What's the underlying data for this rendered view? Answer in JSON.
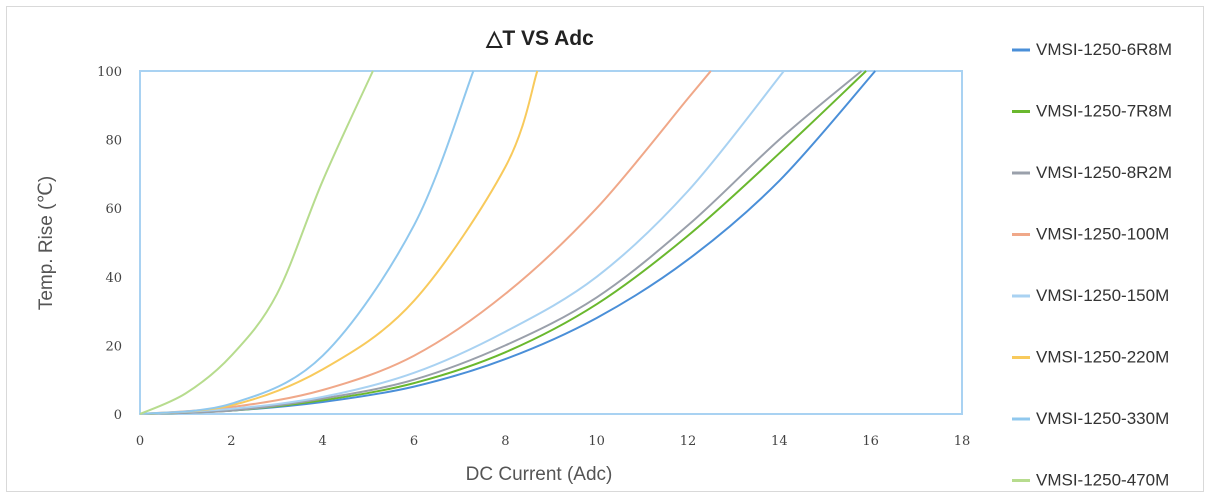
{
  "chart_data": {
    "type": "line",
    "title": "△T VS Adc",
    "xlabel": "DC Current (Adc)",
    "ylabel": "Temp. Rise (℃)",
    "xlim": [
      0,
      18
    ],
    "ylim": [
      0,
      100
    ],
    "x_ticks": [
      "0",
      "2",
      "4",
      "6",
      "8",
      "10",
      "12",
      "14",
      "16",
      "18"
    ],
    "y_ticks": [
      "0",
      "20",
      "40",
      "60",
      "80",
      "100"
    ],
    "grid": false,
    "legend_position": "right",
    "series": [
      {
        "name": "VMSI-1250-6R8M",
        "color": "#4a8fd8",
        "x": [
          0,
          2,
          4,
          6,
          8,
          10,
          12,
          14,
          16.1
        ],
        "y": [
          0,
          1,
          3.5,
          8,
          16,
          28,
          45,
          68,
          100
        ]
      },
      {
        "name": "VMSI-1250-7R8M",
        "color": "#6ab82e",
        "x": [
          0,
          2,
          4,
          6,
          8,
          10,
          12,
          14,
          15.9
        ],
        "y": [
          0,
          1,
          4,
          9,
          18,
          32,
          52,
          76,
          100
        ]
      },
      {
        "name": "VMSI-1250-8R2M",
        "color": "#9aa0ab",
        "x": [
          0,
          2,
          4,
          6,
          8,
          10,
          12,
          14,
          15.8
        ],
        "y": [
          0,
          1,
          4.5,
          10,
          20,
          34,
          55,
          80,
          100
        ]
      },
      {
        "name": "VMSI-1250-100M",
        "color": "#f0a889",
        "x": [
          0,
          2,
          4,
          6,
          8,
          10,
          12,
          12.5
        ],
        "y": [
          0,
          2,
          7,
          17,
          35,
          60,
          92,
          100
        ]
      },
      {
        "name": "VMSI-1250-150M",
        "color": "#a9d2f2",
        "x": [
          0,
          2,
          4,
          6,
          8,
          10,
          12,
          14.1
        ],
        "y": [
          0,
          1.5,
          5,
          12,
          24,
          40,
          65,
          100
        ]
      },
      {
        "name": "VMSI-1250-220M",
        "color": "#f8ca5c",
        "x": [
          0,
          2,
          4,
          6,
          8,
          8.7
        ],
        "y": [
          0,
          2.5,
          13,
          33,
          72,
          100
        ]
      },
      {
        "name": "VMSI-1250-330M",
        "color": "#90c8ee",
        "x": [
          0,
          2,
          4,
          6,
          7.3
        ],
        "y": [
          0,
          3,
          17,
          55,
          100
        ]
      },
      {
        "name": "VMSI-1250-470M",
        "color": "#b7dc8e",
        "x": [
          0,
          1,
          2,
          3,
          4,
          5.1
        ],
        "y": [
          0,
          6,
          17,
          35,
          68,
          100
        ]
      }
    ]
  }
}
